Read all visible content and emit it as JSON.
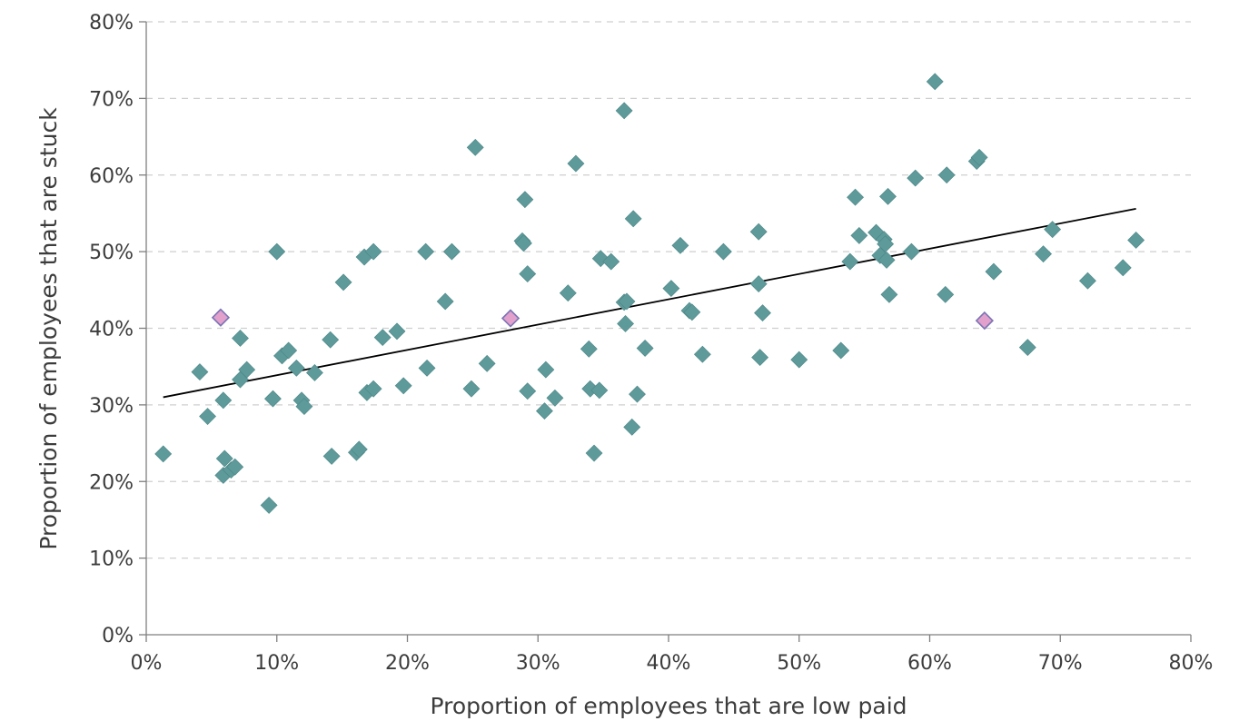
{
  "chart_data": {
    "type": "scatter",
    "xlabel": "Proportion of employees that are low paid",
    "ylabel": "Proportion of employees that are stuck",
    "xlim": [
      0,
      80
    ],
    "ylim": [
      0,
      80
    ],
    "x_ticks": [
      "0%",
      "10%",
      "20%",
      "30%",
      "40%",
      "50%",
      "60%",
      "70%",
      "80%"
    ],
    "y_ticks": [
      "0%",
      "10%",
      "20%",
      "30%",
      "40%",
      "50%",
      "60%",
      "70%",
      "80%"
    ],
    "grid": "horizontal dashed",
    "colors": {
      "points": "#5f9a9a",
      "highlighted": "#e2a0cc",
      "highlighted_edge": "#7a74b5",
      "trendline": "#000000"
    },
    "points": [
      [
        1.3,
        23.6
      ],
      [
        4.1,
        34.3
      ],
      [
        4.7,
        28.5
      ],
      [
        5.9,
        30.6
      ],
      [
        6.0,
        23.0
      ],
      [
        5.9,
        20.8
      ],
      [
        6.5,
        21.5
      ],
      [
        6.8,
        21.9
      ],
      [
        7.2,
        38.7
      ],
      [
        7.2,
        33.3
      ],
      [
        7.7,
        34.6
      ],
      [
        9.4,
        16.9
      ],
      [
        9.7,
        30.8
      ],
      [
        10.0,
        50.0
      ],
      [
        10.4,
        36.4
      ],
      [
        10.9,
        37.1
      ],
      [
        11.5,
        34.8
      ],
      [
        11.9,
        30.6
      ],
      [
        12.1,
        29.8
      ],
      [
        12.9,
        34.2
      ],
      [
        14.1,
        38.5
      ],
      [
        14.2,
        23.3
      ],
      [
        15.1,
        46.0
      ],
      [
        16.1,
        23.8
      ],
      [
        16.3,
        24.2
      ],
      [
        16.7,
        49.3
      ],
      [
        16.9,
        31.6
      ],
      [
        17.4,
        32.1
      ],
      [
        17.4,
        50.0
      ],
      [
        18.1,
        38.8
      ],
      [
        19.2,
        39.6
      ],
      [
        19.7,
        32.5
      ],
      [
        21.4,
        50.0
      ],
      [
        21.5,
        34.8
      ],
      [
        22.9,
        43.5
      ],
      [
        23.4,
        50.0
      ],
      [
        24.9,
        32.1
      ],
      [
        25.2,
        63.6
      ],
      [
        26.1,
        35.4
      ],
      [
        28.8,
        51.4
      ],
      [
        28.9,
        51.1
      ],
      [
        29.0,
        56.8
      ],
      [
        29.2,
        47.1
      ],
      [
        29.2,
        31.8
      ],
      [
        30.5,
        29.2
      ],
      [
        30.6,
        34.6
      ],
      [
        31.3,
        30.9
      ],
      [
        32.3,
        44.6
      ],
      [
        32.9,
        61.5
      ],
      [
        33.9,
        37.3
      ],
      [
        34.0,
        32.1
      ],
      [
        34.3,
        23.7
      ],
      [
        34.7,
        31.9
      ],
      [
        34.8,
        49.1
      ],
      [
        35.6,
        48.7
      ],
      [
        36.6,
        68.4
      ],
      [
        36.6,
        43.4
      ],
      [
        36.7,
        40.6
      ],
      [
        36.8,
        43.5
      ],
      [
        37.2,
        27.1
      ],
      [
        37.3,
        54.3
      ],
      [
        37.6,
        31.4
      ],
      [
        38.2,
        37.4
      ],
      [
        40.2,
        45.2
      ],
      [
        40.9,
        50.8
      ],
      [
        41.6,
        42.3
      ],
      [
        41.8,
        42.1
      ],
      [
        42.6,
        36.6
      ],
      [
        44.2,
        50.0
      ],
      [
        46.9,
        52.6
      ],
      [
        46.9,
        45.8
      ],
      [
        47.0,
        36.2
      ],
      [
        47.2,
        42.0
      ],
      [
        50.0,
        35.9
      ],
      [
        53.2,
        37.1
      ],
      [
        53.9,
        48.7
      ],
      [
        54.3,
        57.1
      ],
      [
        54.6,
        52.1
      ],
      [
        55.9,
        52.5
      ],
      [
        56.2,
        49.5
      ],
      [
        56.5,
        51.6
      ],
      [
        56.6,
        51.0
      ],
      [
        56.7,
        48.9
      ],
      [
        56.8,
        57.2
      ],
      [
        56.9,
        44.4
      ],
      [
        58.6,
        50.0
      ],
      [
        58.9,
        59.6
      ],
      [
        60.4,
        72.2
      ],
      [
        61.2,
        44.4
      ],
      [
        61.3,
        60.0
      ],
      [
        63.6,
        61.8
      ],
      [
        63.8,
        62.3
      ],
      [
        64.9,
        47.4
      ],
      [
        67.5,
        37.5
      ],
      [
        68.7,
        49.7
      ],
      [
        69.4,
        52.9
      ],
      [
        72.1,
        46.2
      ],
      [
        74.8,
        47.9
      ],
      [
        75.8,
        51.5
      ]
    ],
    "highlighted_points": [
      [
        5.7,
        41.4
      ],
      [
        27.9,
        41.3
      ],
      [
        64.2,
        41.0
      ]
    ],
    "trendline": {
      "x": [
        1.3,
        75.8
      ],
      "y": [
        31.0,
        55.6
      ]
    }
  }
}
